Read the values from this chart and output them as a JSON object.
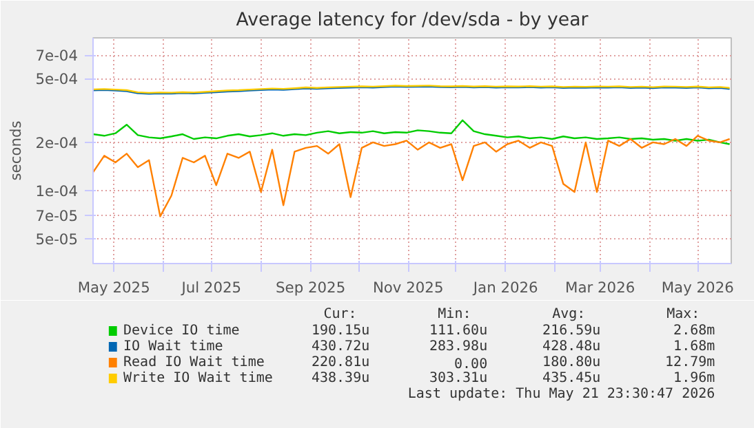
{
  "chart_data": {
    "type": "line",
    "title": "Average latency for /dev/sda - by year",
    "ylabel": "seconds",
    "log": "y",
    "grid": true,
    "legend": "bottom",
    "line_style": "solid",
    "xlim": [
      "2025-04-18",
      "2026-05-22"
    ],
    "xticks": [
      {
        "value": "2025-05-01",
        "label": "May 2025"
      },
      {
        "value": "2025-06-01",
        "label": null
      },
      {
        "value": "2025-07-01",
        "label": "Jul 2025"
      },
      {
        "value": "2025-08-01",
        "label": null
      },
      {
        "value": "2025-09-01",
        "label": "Sep 2025"
      },
      {
        "value": "2025-10-01",
        "label": null
      },
      {
        "value": "2025-11-01",
        "label": "Nov 2025"
      },
      {
        "value": "2025-12-01",
        "label": null
      },
      {
        "value": "2026-01-01",
        "label": "Jan 2026"
      },
      {
        "value": "2026-02-01",
        "label": null
      },
      {
        "value": "2026-03-01",
        "label": "Mar 2026"
      },
      {
        "value": "2026-04-01",
        "label": null
      },
      {
        "value": "2026-05-01",
        "label": "May 2026"
      }
    ],
    "ylim": [
      3.5e-05,
      0.0009
    ],
    "yticks": [
      {
        "value": 5e-05,
        "label": "5e-05"
      },
      {
        "value": 7e-05,
        "label": "7e-05"
      },
      {
        "value": 0.0001,
        "label": "1e-04"
      },
      {
        "value": 0.0002,
        "label": "2e-04"
      },
      {
        "value": 0.0005,
        "label": "5e-04"
      },
      {
        "value": 0.0007,
        "label": "7e-04"
      }
    ],
    "x": [
      "2025-04-18",
      "2025-04-25",
      "2025-05-02",
      "2025-05-09",
      "2025-05-16",
      "2025-05-23",
      "2025-05-30",
      "2025-06-06",
      "2025-06-13",
      "2025-06-20",
      "2025-06-27",
      "2025-07-04",
      "2025-07-11",
      "2025-07-18",
      "2025-07-25",
      "2025-08-01",
      "2025-08-08",
      "2025-08-15",
      "2025-08-22",
      "2025-08-29",
      "2025-09-05",
      "2025-09-12",
      "2025-09-19",
      "2025-09-26",
      "2025-10-03",
      "2025-10-10",
      "2025-10-17",
      "2025-10-24",
      "2025-10-31",
      "2025-11-07",
      "2025-11-14",
      "2025-11-21",
      "2025-11-28",
      "2025-12-05",
      "2025-12-12",
      "2025-12-19",
      "2025-12-26",
      "2026-01-02",
      "2026-01-09",
      "2026-01-16",
      "2026-01-23",
      "2026-01-30",
      "2026-02-06",
      "2026-02-13",
      "2026-02-20",
      "2026-02-27",
      "2026-03-06",
      "2026-03-13",
      "2026-03-20",
      "2026-03-27",
      "2026-04-03",
      "2026-04-10",
      "2026-04-17",
      "2026-04-24",
      "2026-05-01",
      "2026-05-08",
      "2026-05-15",
      "2026-05-21"
    ],
    "series": [
      {
        "name": "Device IO time",
        "color": "#00cc00",
        "values": [
          0.000225,
          0.00022,
          0.000228,
          0.000258,
          0.000222,
          0.000215,
          0.000212,
          0.000218,
          0.000225,
          0.00021,
          0.000215,
          0.000212,
          0.00022,
          0.000225,
          0.000218,
          0.000222,
          0.000228,
          0.00022,
          0.000225,
          0.000222,
          0.00023,
          0.000235,
          0.000228,
          0.000232,
          0.00023,
          0.000235,
          0.000228,
          0.000232,
          0.00023,
          0.000238,
          0.000235,
          0.00023,
          0.000228,
          0.000275,
          0.000235,
          0.000225,
          0.00022,
          0.000215,
          0.000218,
          0.000212,
          0.000215,
          0.00021,
          0.000218,
          0.000212,
          0.000215,
          0.00021,
          0.000212,
          0.000215,
          0.00021,
          0.000212,
          0.000208,
          0.00021,
          0.000205,
          0.00021,
          0.000205,
          0.000208,
          0.0002,
          0.000195
        ]
      },
      {
        "name": "IO Wait time",
        "color": "#0066b3",
        "values": [
          0.000423,
          0.000425,
          0.000422,
          0.000418,
          0.000405,
          0.000402,
          0.000404,
          0.000403,
          0.000406,
          0.000404,
          0.000408,
          0.000412,
          0.000416,
          0.000418,
          0.000422,
          0.000425,
          0.000428,
          0.000426,
          0.00043,
          0.000435,
          0.000432,
          0.000436,
          0.000438,
          0.00044,
          0.000442,
          0.00044,
          0.000443,
          0.000446,
          0.000444,
          0.000445,
          0.000447,
          0.000443,
          0.000442,
          0.000444,
          0.000441,
          0.000443,
          0.00044,
          0.000442,
          0.000441,
          0.000443,
          0.00044,
          0.000442,
          0.000438,
          0.00044,
          0.000439,
          0.000441,
          0.00044,
          0.000442,
          0.000438,
          0.00044,
          0.000437,
          0.000441,
          0.00044,
          0.000438,
          0.000441,
          0.000436,
          0.000438,
          0.000431
        ]
      },
      {
        "name": "Read IO Wait time",
        "color": "#ff8000",
        "values": [
          0.00013,
          0.000165,
          0.00015,
          0.00017,
          0.00014,
          0.000155,
          6.9e-05,
          9.3e-05,
          0.00016,
          0.00015,
          0.000165,
          0.000108,
          0.00017,
          0.00016,
          0.000175,
          9.8e-05,
          0.00018,
          8.1e-05,
          0.000175,
          0.000185,
          0.00019,
          0.00017,
          0.000195,
          9.1e-05,
          0.000185,
          0.0002,
          0.00019,
          0.000195,
          0.000205,
          0.00018,
          0.0002,
          0.000185,
          0.000195,
          0.000116,
          0.00019,
          0.0002,
          0.000175,
          0.000195,
          0.000205,
          0.000185,
          0.0002,
          0.00019,
          0.00011,
          9.8e-05,
          0.0002,
          9.8e-05,
          0.000205,
          0.00019,
          0.00021,
          0.000185,
          0.0002,
          0.000195,
          0.00021,
          0.00019,
          0.00022,
          0.000205,
          0.0002,
          0.00021
        ]
      },
      {
        "name": "Write IO Wait time",
        "color": "#ffcc00",
        "values": [
          0.000429,
          0.000431,
          0.000428,
          0.000424,
          0.000411,
          0.000408,
          0.00041,
          0.000409,
          0.000412,
          0.00041,
          0.000414,
          0.000418,
          0.000422,
          0.000424,
          0.000428,
          0.000431,
          0.000434,
          0.000432,
          0.000436,
          0.000441,
          0.000438,
          0.000442,
          0.000444,
          0.000446,
          0.000448,
          0.000446,
          0.000449,
          0.000452,
          0.00045,
          0.000451,
          0.000453,
          0.000449,
          0.000448,
          0.00045,
          0.000447,
          0.000449,
          0.000446,
          0.000448,
          0.000447,
          0.000449,
          0.000446,
          0.000448,
          0.000444,
          0.000446,
          0.000445,
          0.000447,
          0.000446,
          0.000448,
          0.000444,
          0.000446,
          0.000443,
          0.000447,
          0.000446,
          0.000444,
          0.000447,
          0.000442,
          0.000444,
          0.000438
        ]
      }
    ],
    "annotations": [
      "Cur:",
      "Min:",
      "Avg:",
      "Max:",
      "190.15u",
      "111.60u",
      "216.59u",
      "2.68m",
      "430.72u",
      "283.98u",
      "428.48u",
      "1.68m",
      "220.81u",
      "0.00",
      "180.80u",
      "12.79m",
      "438.39u",
      "303.31u",
      "435.45u",
      "1.96m",
      "Last update: Thu May 21 23:30:47 2026"
    ]
  }
}
